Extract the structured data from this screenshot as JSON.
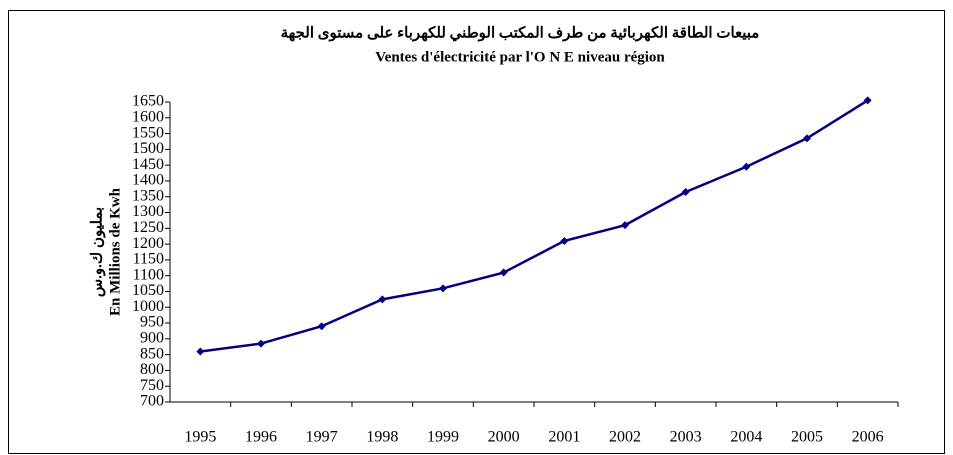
{
  "chart_data": {
    "type": "line",
    "title": "مبيعات الطاقة الكهربائية من طرف المكتب الوطني للكهرباء على مستوى الجهة",
    "subtitle": "Ventes d'électricité par l'O N E  niveau région",
    "y_label": [
      "بمليون ك.و.س",
      "En Millions de Kwh"
    ],
    "categories": [
      "1995",
      "1996",
      "1997",
      "1998",
      "1999",
      "2000",
      "2001",
      "2002",
      "2003",
      "2004",
      "2005",
      "2006"
    ],
    "values": [
      860,
      885,
      940,
      1025,
      1060,
      1110,
      1210,
      1260,
      1365,
      1445,
      1535,
      1655
    ],
    "color": "#000080",
    "ylim": [
      700,
      1650
    ],
    "yticks": [
      700,
      750,
      800,
      850,
      900,
      950,
      1000,
      1050,
      1100,
      1150,
      1200,
      1250,
      1300,
      1350,
      1400,
      1450,
      1500,
      1550,
      1600,
      1650
    ],
    "grid": false
  }
}
